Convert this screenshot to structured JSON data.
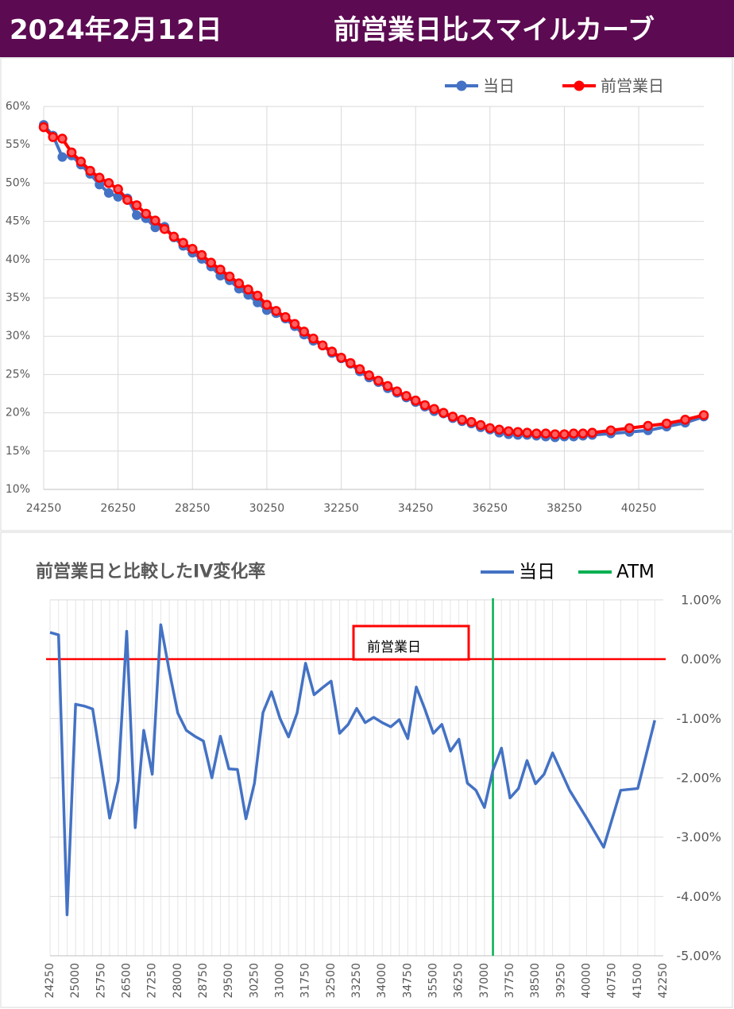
{
  "header": {
    "date": "2024年2月12日",
    "title": "前営業日比スマイルカーブ"
  },
  "chart_data": [
    {
      "type": "line",
      "markers": true,
      "legend": "top-right",
      "grid": true,
      "x": [
        24250,
        24500,
        24750,
        25000,
        25250,
        25500,
        25750,
        26000,
        26250,
        26500,
        26750,
        27000,
        27250,
        27500,
        27750,
        28000,
        28250,
        28500,
        28750,
        29000,
        29250,
        29500,
        29750,
        30000,
        30250,
        30500,
        30750,
        31000,
        31250,
        31500,
        31750,
        32000,
        32250,
        32500,
        32750,
        33000,
        33250,
        33500,
        33750,
        34000,
        34250,
        34500,
        34750,
        35000,
        35250,
        35500,
        35750,
        36000,
        36250,
        36500,
        36750,
        37000,
        37250,
        37500,
        37750,
        38000,
        38250,
        38500,
        38750,
        39000,
        39500,
        40000,
        40500,
        41000,
        41500,
        42000
      ],
      "series": [
        {
          "name": "当日",
          "color": "#4472c4",
          "values": [
            57.6,
            56.2,
            53.4,
            53.6,
            52.4,
            51.2,
            49.8,
            48.7,
            48.2,
            48.0,
            45.8,
            45.4,
            44.2,
            44.3,
            42.9,
            41.8,
            40.9,
            40.1,
            39.1,
            37.9,
            37.3,
            36.2,
            35.4,
            34.4,
            33.4,
            33.0,
            32.3,
            31.3,
            30.2,
            29.4,
            28.8,
            27.8,
            27.1,
            26.4,
            25.4,
            24.6,
            24.0,
            23.2,
            22.6,
            22.0,
            21.4,
            20.8,
            20.2,
            19.9,
            19.3,
            18.9,
            18.6,
            18.1,
            17.8,
            17.4,
            17.2,
            17.1,
            17.1,
            17.0,
            16.9,
            16.8,
            16.9,
            16.9,
            17.0,
            17.1,
            17.3,
            17.5,
            17.7,
            18.2,
            18.7,
            19.5
          ]
        },
        {
          "name": "前営業日",
          "color": "#ff0000",
          "values": [
            57.3,
            56.0,
            55.8,
            54.0,
            52.8,
            51.6,
            50.7,
            50.0,
            49.2,
            47.8,
            47.1,
            46.0,
            45.1,
            44.0,
            43.0,
            42.2,
            41.4,
            40.6,
            39.6,
            38.7,
            37.8,
            36.9,
            36.1,
            35.3,
            34.1,
            33.3,
            32.5,
            31.6,
            30.6,
            29.7,
            28.8,
            28.0,
            27.2,
            26.5,
            25.7,
            24.9,
            24.2,
            23.5,
            22.8,
            22.2,
            21.6,
            21.0,
            20.5,
            20.0,
            19.5,
            19.1,
            18.8,
            18.4,
            18.0,
            17.8,
            17.6,
            17.5,
            17.4,
            17.3,
            17.3,
            17.2,
            17.2,
            17.3,
            17.3,
            17.4,
            17.7,
            18.0,
            18.3,
            18.6,
            19.1,
            19.7
          ]
        }
      ],
      "xlim": [
        24250,
        42000
      ],
      "xticks": [
        24250,
        26250,
        28250,
        30250,
        32250,
        34250,
        36250,
        38250,
        40250
      ],
      "ylim": [
        10,
        60
      ],
      "yticks": [
        {
          "value": 10,
          "label": "10%"
        },
        {
          "value": 15,
          "label": "15%"
        },
        {
          "value": 20,
          "label": "20%"
        },
        {
          "value": 25,
          "label": "25%"
        },
        {
          "value": 30,
          "label": "30%"
        },
        {
          "value": 35,
          "label": "35%"
        },
        {
          "value": 40,
          "label": "40%"
        },
        {
          "value": 45,
          "label": "45%"
        },
        {
          "value": 50,
          "label": "50%"
        },
        {
          "value": 55,
          "label": "55%"
        },
        {
          "value": 60,
          "label": "60%"
        }
      ]
    },
    {
      "type": "line",
      "title": "前営業日と比較したIV変化率",
      "legend": "top-right",
      "grid": true,
      "yaxis_side": "right",
      "xtick_rotation": 90,
      "x": [
        24250,
        24500,
        24750,
        25000,
        25250,
        25500,
        25750,
        26000,
        26250,
        26500,
        26750,
        27000,
        27250,
        27500,
        27750,
        28000,
        28250,
        28500,
        28750,
        29000,
        29250,
        29500,
        29750,
        30000,
        30250,
        30500,
        30750,
        31000,
        31250,
        31500,
        31750,
        32000,
        32250,
        32500,
        32750,
        33000,
        33250,
        33500,
        33750,
        34000,
        34250,
        34500,
        34750,
        35000,
        35250,
        35500,
        35750,
        36000,
        36250,
        36500,
        36750,
        37000,
        37250,
        37500,
        37750,
        38000,
        38250,
        38500,
        38750,
        39000,
        39500,
        40000,
        40500,
        41000,
        41500,
        42000
      ],
      "series": [
        {
          "name": "当日",
          "color": "#4472c4",
          "values": [
            0.45,
            0.41,
            -4.31,
            -0.76,
            -0.79,
            -0.84,
            -1.75,
            -2.68,
            -2.05,
            0.47,
            -2.84,
            -1.2,
            -1.94,
            0.58,
            -0.2,
            -0.91,
            -1.2,
            -1.3,
            -1.38,
            -2.0,
            -1.3,
            -1.85,
            -1.86,
            -2.69,
            -2.09,
            -0.9,
            -0.55,
            -1.0,
            -1.31,
            -0.91,
            -0.07,
            -0.6,
            -0.48,
            -0.37,
            -1.25,
            -1.1,
            -0.83,
            -1.07,
            -0.98,
            -1.07,
            -1.14,
            -1.02,
            -1.34,
            -0.47,
            -0.84,
            -1.25,
            -1.1,
            -1.55,
            -1.35,
            -2.09,
            -2.21,
            -2.5,
            -1.87,
            -1.5,
            -2.34,
            -2.18,
            -1.71,
            -2.1,
            -1.94,
            -1.58,
            -2.21,
            -2.68,
            -3.17,
            -2.21,
            -2.18,
            -1.03
          ]
        }
      ],
      "atm": {
        "name": "ATM",
        "color": "#00b050",
        "x": 37250
      },
      "reference_line": {
        "label": "前営業日",
        "value": 0,
        "color": "#ff0000"
      },
      "xlim": [
        24250,
        42250
      ],
      "xticks": [
        24250,
        25000,
        25750,
        26500,
        27250,
        28000,
        28750,
        29500,
        30250,
        31000,
        31750,
        32500,
        33250,
        34000,
        34750,
        35500,
        36250,
        37000,
        37750,
        38500,
        39250,
        40000,
        40750,
        41500,
        42250
      ],
      "ylim": [
        -5,
        1
      ],
      "yticks": [
        {
          "value": 1,
          "label": "1.00%"
        },
        {
          "value": 0,
          "label": "0.00%"
        },
        {
          "value": -1,
          "label": "-1.00%"
        },
        {
          "value": -2,
          "label": "-2.00%"
        },
        {
          "value": -3,
          "label": "-3.00%"
        },
        {
          "value": -4,
          "label": "-4.00%"
        },
        {
          "value": -5,
          "label": "-5.00%"
        }
      ]
    }
  ]
}
